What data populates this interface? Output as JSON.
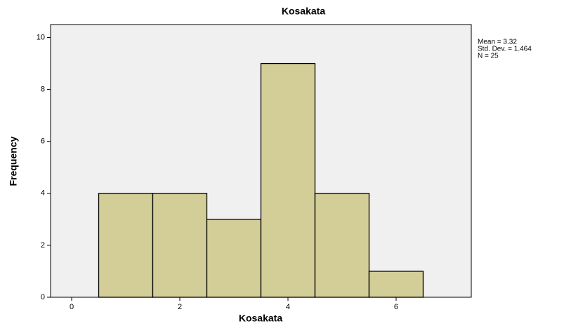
{
  "chart_data": {
    "type": "histogram",
    "title": "Kosakata",
    "x_label": "Kosakata",
    "y_label": "Frequency",
    "bins": [
      0.5,
      1.5,
      2.5,
      3.5,
      4.5,
      5.5,
      6.5
    ],
    "values": [
      4,
      4,
      3,
      9,
      4,
      1
    ],
    "color": "#d3ce98",
    "background": "#f0f0f0",
    "xlim": [
      -0.39,
      7.39
    ],
    "xticks": [
      0,
      2,
      4,
      6
    ],
    "ylim": [
      0,
      10.5
    ],
    "yticks": [
      0,
      2,
      4,
      6,
      8,
      10
    ],
    "annotations": [
      "Mean = 3.32",
      "Std. Dev. = 1.464",
      "N = 25"
    ]
  }
}
